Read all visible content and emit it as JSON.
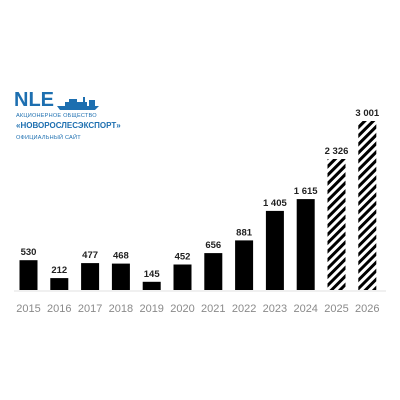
{
  "logo": {
    "mark_text": "NLE",
    "org_type": "АКЦИОНЕРНОЕ ОБЩЕСТВО",
    "org_name": "«НОВОРОСЛЕСЭКСПОРТ»",
    "site_label": "ОФИЦИАЛЬНЫЙ САЙТ",
    "icon": "ship-icon",
    "color": "#1d6fb0"
  },
  "chart_data": {
    "type": "bar",
    "categories": [
      "2015",
      "2016",
      "2017",
      "2018",
      "2019",
      "2020",
      "2021",
      "2022",
      "2023",
      "2024",
      "2025",
      "2026"
    ],
    "values": [
      530,
      212,
      477,
      468,
      145,
      452,
      656,
      881,
      1405,
      1615,
      2326,
      3001
    ],
    "value_labels": [
      "530",
      "212",
      "477",
      "468",
      "145",
      "452",
      "656",
      "881",
      "1 405",
      "1 615",
      "2 326",
      "3 001"
    ],
    "forecast": [
      false,
      false,
      false,
      false,
      false,
      false,
      false,
      false,
      false,
      false,
      true,
      true
    ],
    "bar_color": "#000000",
    "forecast_pattern": "diagonal-hatch",
    "title": "",
    "xlabel": "",
    "ylabel": "",
    "ylim": [
      0,
      3001
    ],
    "grid": false,
    "legend": "none"
  }
}
